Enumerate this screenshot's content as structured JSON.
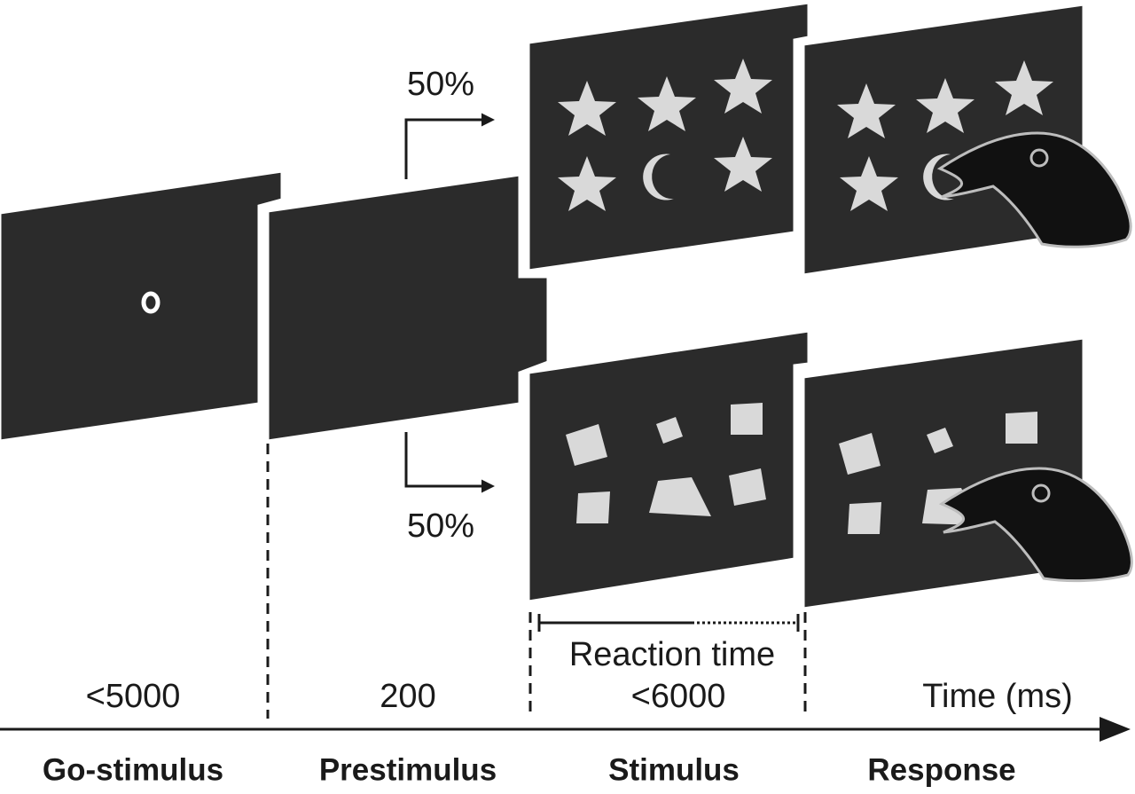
{
  "arrows": {
    "upper_label": "50%",
    "lower_label": "50%"
  },
  "durations": {
    "go_stimulus": "<5000",
    "prestimulus": "200",
    "stimulus": "<6000",
    "reaction_time": "Reaction time",
    "axis_label": "Time (ms)"
  },
  "phases": [
    "Go-stimulus",
    "Prestimulus",
    "Stimulus",
    "Response"
  ]
}
